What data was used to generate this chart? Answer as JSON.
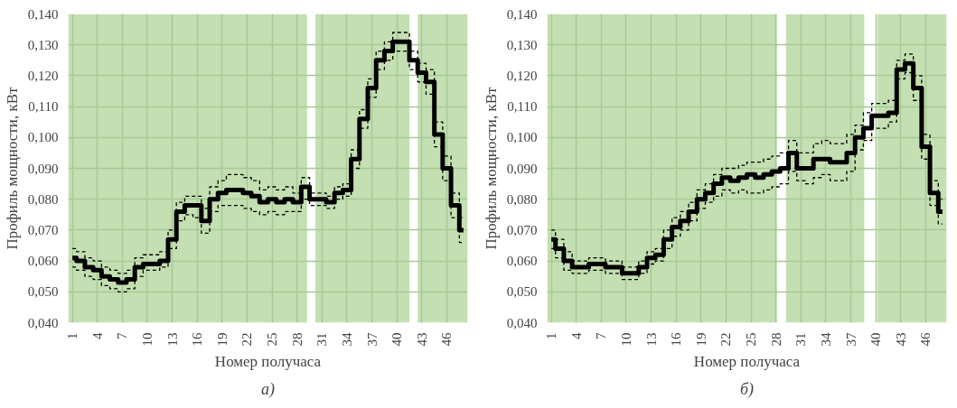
{
  "chart_data": [
    {
      "type": "step",
      "xlabel": "Номер получаса",
      "ylabel": "Профиль мощности, кВт",
      "annotations": [
        "а)"
      ],
      "x": [
        1,
        2,
        3,
        4,
        5,
        6,
        7,
        8,
        9,
        10,
        11,
        12,
        13,
        14,
        15,
        16,
        17,
        18,
        19,
        20,
        21,
        22,
        23,
        24,
        25,
        26,
        27,
        28,
        29,
        30,
        31,
        32,
        33,
        34,
        35,
        36,
        37,
        38,
        39,
        40,
        41,
        42,
        43,
        44,
        45,
        46,
        47,
        48
      ],
      "series": [
        {
          "color": "#000000",
          "values": [
            0.061,
            0.06,
            0.058,
            0.057,
            0.055,
            0.054,
            0.053,
            0.054,
            0.058,
            0.059,
            0.059,
            0.06,
            0.067,
            0.076,
            0.078,
            0.078,
            0.073,
            0.08,
            0.082,
            0.083,
            0.083,
            0.082,
            0.081,
            0.079,
            0.08,
            0.079,
            0.08,
            0.079,
            0.084,
            0.08,
            0.08,
            0.079,
            0.082,
            0.083,
            0.093,
            0.106,
            0.116,
            0.125,
            0.128,
            0.131,
            0.131,
            0.125,
            0.121,
            0.118,
            0.101,
            0.09,
            0.078,
            0.07
          ],
          "line_style": "solid"
        },
        {
          "color": "#000000",
          "line_style": "dashed",
          "values": [
            0.058,
            0.057,
            0.055,
            0.054,
            0.052,
            0.051,
            0.05,
            0.051,
            0.055,
            0.057,
            0.057,
            0.058,
            0.064,
            0.073,
            0.075,
            0.074,
            0.069,
            0.076,
            0.078,
            0.078,
            0.078,
            0.077,
            0.076,
            0.075,
            0.076,
            0.075,
            0.076,
            0.076,
            0.08,
            0.078,
            0.078,
            0.077,
            0.08,
            0.081,
            0.09,
            0.103,
            0.113,
            0.122,
            0.125,
            0.128,
            0.128,
            0.122,
            0.118,
            0.114,
            0.097,
            0.086,
            0.074,
            0.066
          ]
        },
        {
          "color": "#000000",
          "line_style": "dashed",
          "values": [
            0.064,
            0.063,
            0.061,
            0.06,
            0.058,
            0.057,
            0.056,
            0.057,
            0.061,
            0.062,
            0.062,
            0.063,
            0.07,
            0.079,
            0.081,
            0.081,
            0.077,
            0.084,
            0.086,
            0.088,
            0.088,
            0.087,
            0.086,
            0.083,
            0.084,
            0.083,
            0.084,
            0.082,
            0.087,
            0.082,
            0.082,
            0.081,
            0.084,
            0.085,
            0.096,
            0.109,
            0.119,
            0.128,
            0.131,
            0.134,
            0.134,
            0.128,
            0.124,
            0.122,
            0.105,
            0.094,
            0.082,
            0.074
          ]
        }
      ],
      "xlim": [
        0.5,
        48.5
      ],
      "xticks": [
        1,
        4,
        7,
        10,
        13,
        16,
        19,
        22,
        25,
        28,
        31,
        34,
        37,
        40,
        43,
        46
      ],
      "ylim": [
        0.04,
        0.14
      ],
      "yticks": [
        {
          "value": 0.04,
          "label": "0,040"
        },
        {
          "value": 0.05,
          "label": "0,050"
        },
        {
          "value": 0.06,
          "label": "0,060"
        },
        {
          "value": 0.07,
          "label": "0,070"
        },
        {
          "value": 0.08,
          "label": "0,080"
        },
        {
          "value": 0.09,
          "label": "0,090"
        },
        {
          "value": 0.1,
          "label": "0,100"
        },
        {
          "value": 0.11,
          "label": "0,110"
        },
        {
          "value": 0.12,
          "label": "0,120"
        },
        {
          "value": 0.13,
          "label": "0,130"
        },
        {
          "value": 0.14,
          "label": "0,140"
        }
      ],
      "bands": [
        {
          "axis": "x",
          "from": 0.5,
          "to": 29.2,
          "color": "#c4dfb2"
        },
        {
          "axis": "x",
          "from": 30.2,
          "to": 41.5,
          "color": "#c4dfb2"
        },
        {
          "axis": "x",
          "from": 42.5,
          "to": 48.5,
          "color": "#c4dfb2"
        }
      ],
      "grid": true
    },
    {
      "type": "step",
      "xlabel": "Номер получаса",
      "ylabel": "Профиль мощности, кВт",
      "annotations": [
        "б)"
      ],
      "x": [
        1,
        2,
        3,
        4,
        5,
        6,
        7,
        8,
        9,
        10,
        11,
        12,
        13,
        14,
        15,
        16,
        17,
        18,
        19,
        20,
        21,
        22,
        23,
        24,
        25,
        26,
        27,
        28,
        29,
        30,
        31,
        32,
        33,
        34,
        35,
        36,
        37,
        38,
        39,
        40,
        41,
        42,
        43,
        44,
        45,
        46,
        47,
        48
      ],
      "series": [
        {
          "color": "#000000",
          "values": [
            0.067,
            0.064,
            0.06,
            0.058,
            0.058,
            0.059,
            0.059,
            0.058,
            0.058,
            0.056,
            0.056,
            0.058,
            0.061,
            0.062,
            0.067,
            0.071,
            0.073,
            0.076,
            0.08,
            0.082,
            0.085,
            0.087,
            0.086,
            0.087,
            0.088,
            0.087,
            0.088,
            0.089,
            0.09,
            0.095,
            0.09,
            0.09,
            0.093,
            0.093,
            0.092,
            0.092,
            0.095,
            0.1,
            0.103,
            0.107,
            0.107,
            0.108,
            0.122,
            0.124,
            0.116,
            0.097,
            0.082,
            0.076
          ],
          "line_style": "solid"
        },
        {
          "color": "#000000",
          "line_style": "dashed",
          "values": [
            0.064,
            0.061,
            0.057,
            0.056,
            0.056,
            0.057,
            0.057,
            0.056,
            0.056,
            0.054,
            0.054,
            0.056,
            0.059,
            0.06,
            0.064,
            0.068,
            0.07,
            0.073,
            0.077,
            0.079,
            0.081,
            0.083,
            0.082,
            0.083,
            0.082,
            0.082,
            0.083,
            0.084,
            0.085,
            0.089,
            0.086,
            0.085,
            0.087,
            0.088,
            0.086,
            0.086,
            0.089,
            0.096,
            0.099,
            0.103,
            0.103,
            0.105,
            0.119,
            0.121,
            0.112,
            0.093,
            0.078,
            0.072
          ]
        },
        {
          "color": "#000000",
          "line_style": "dashed",
          "values": [
            0.07,
            0.067,
            0.063,
            0.06,
            0.06,
            0.061,
            0.061,
            0.06,
            0.06,
            0.058,
            0.058,
            0.06,
            0.063,
            0.064,
            0.07,
            0.074,
            0.076,
            0.079,
            0.083,
            0.085,
            0.088,
            0.09,
            0.09,
            0.091,
            0.092,
            0.092,
            0.093,
            0.094,
            0.095,
            0.099,
            0.095,
            0.095,
            0.098,
            0.099,
            0.098,
            0.098,
            0.101,
            0.104,
            0.108,
            0.111,
            0.111,
            0.112,
            0.125,
            0.127,
            0.12,
            0.101,
            0.086,
            0.08
          ]
        }
      ],
      "xlim": [
        0.5,
        48.5
      ],
      "xticks": [
        1,
        4,
        7,
        10,
        13,
        16,
        19,
        22,
        25,
        28,
        31,
        34,
        37,
        40,
        43,
        46
      ],
      "ylim": [
        0.04,
        0.14
      ],
      "yticks": [
        {
          "value": 0.04,
          "label": "0,040"
        },
        {
          "value": 0.05,
          "label": "0,050"
        },
        {
          "value": 0.06,
          "label": "0,060"
        },
        {
          "value": 0.07,
          "label": "0,070"
        },
        {
          "value": 0.08,
          "label": "0,080"
        },
        {
          "value": 0.09,
          "label": "0,090"
        },
        {
          "value": 0.1,
          "label": "0,100"
        },
        {
          "value": 0.11,
          "label": "0,110"
        },
        {
          "value": 0.12,
          "label": "0,120"
        },
        {
          "value": 0.13,
          "label": "0,130"
        },
        {
          "value": 0.14,
          "label": "0,140"
        }
      ],
      "bands": [
        {
          "axis": "x",
          "from": 0.5,
          "to": 28.1,
          "color": "#c4dfb2"
        },
        {
          "axis": "x",
          "from": 29.2,
          "to": 38.6,
          "color": "#c4dfb2"
        },
        {
          "axis": "x",
          "from": 40.2,
          "to": 48.5,
          "color": "#c4dfb2"
        }
      ],
      "grid": true
    }
  ]
}
